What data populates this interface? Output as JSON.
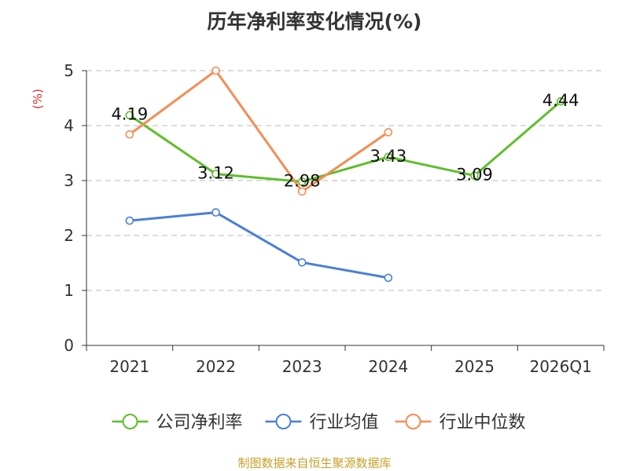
{
  "chart_data": {
    "type": "line",
    "title": "历年净利率变化情况(%)",
    "ylabel": "(%)",
    "xlabel": "",
    "categories": [
      "2021",
      "2022",
      "2023",
      "2024",
      "2025",
      "2026Q1"
    ],
    "ylim": [
      0,
      5
    ],
    "yticks": [
      "0",
      "1",
      "2",
      "3",
      "4",
      "5"
    ],
    "grid": true,
    "legend_position": "bottom",
    "series": [
      {
        "name": "公司净利率",
        "color": "#5cbf2a",
        "values": [
          4.19,
          3.12,
          2.98,
          3.43,
          3.09,
          4.44
        ],
        "labels": [
          "4.19",
          "3.12",
          "2.98",
          "3.43",
          "3.09",
          "4.44"
        ]
      },
      {
        "name": "行业均值",
        "color": "#4a7fd8",
        "values": [
          2.27,
          2.42,
          1.51,
          1.23,
          null,
          null
        ]
      },
      {
        "name": "行业中位数",
        "color": "#f68c52",
        "values": [
          3.84,
          5.0,
          2.8,
          3.88,
          null,
          null
        ]
      }
    ]
  },
  "source": "制图数据来自恒生聚源数据库"
}
